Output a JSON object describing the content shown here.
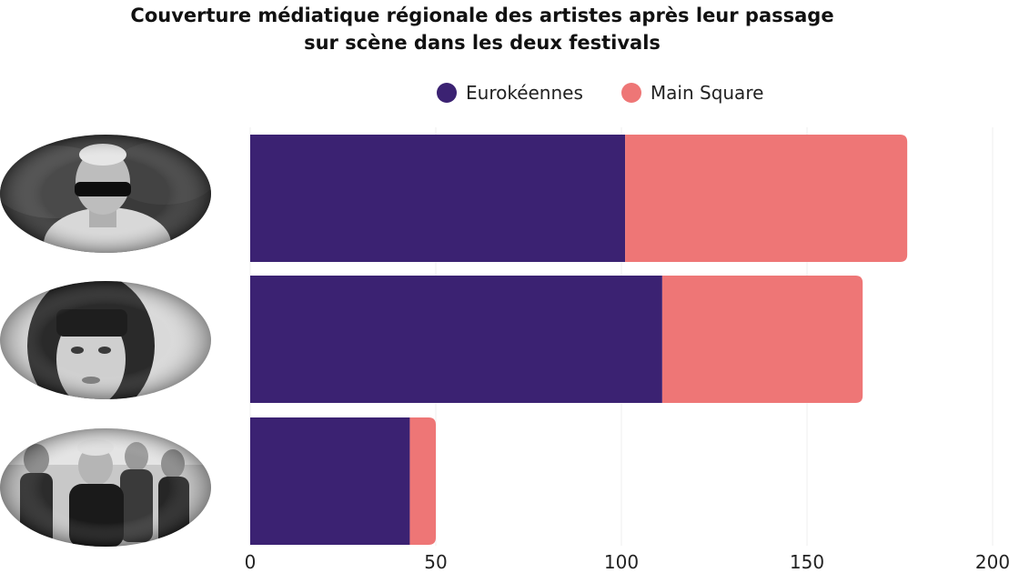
{
  "title_lines": [
    "Couverture médiatique régionale des artistes après leur passage",
    "sur scène dans les deux festivals"
  ],
  "chart_data": {
    "type": "bar",
    "orientation": "horizontal",
    "stacked": true,
    "categories": [
      "",
      "",
      ""
    ],
    "category_images": [
      "artist-photo-man-sunglasses",
      "artist-photo-woman-bangs",
      "artist-photo-band"
    ],
    "series": [
      {
        "name": "Eurokéennes",
        "color": "#3b2272",
        "values": [
          101,
          111,
          43
        ]
      },
      {
        "name": "Main Square",
        "color": "#ee7676",
        "values": [
          76,
          54,
          7
        ]
      }
    ],
    "xlim": [
      0,
      200
    ],
    "x_ticks": [
      "0",
      "50",
      "100",
      "150",
      "200"
    ],
    "legend_position": "top",
    "grid": "vertical"
  }
}
